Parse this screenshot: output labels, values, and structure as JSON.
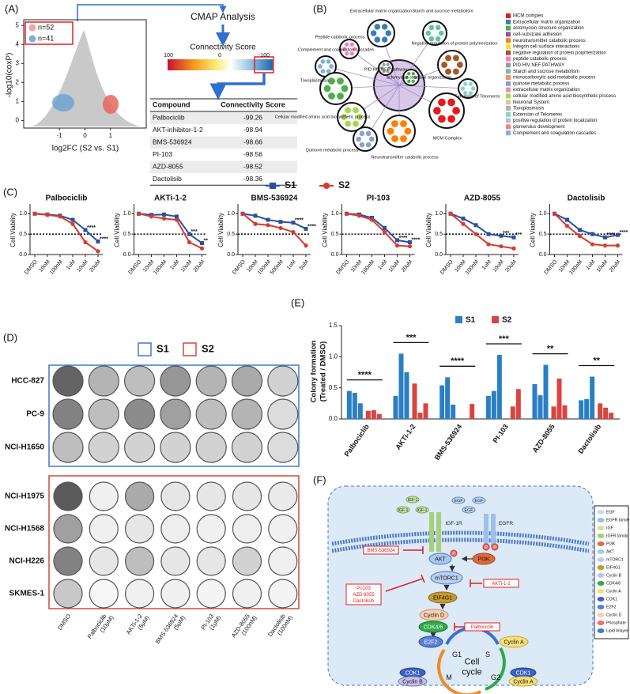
{
  "panel_labels": [
    "(A)",
    "(B)",
    "(C)",
    "(D)",
    "(E)",
    "(F)"
  ],
  "volcano": {
    "type": "scatter",
    "xlabel": "log2FC (S2 vs. S1)",
    "ylabel": "-log10(coxP)",
    "xlim": [
      -2.4,
      2.4
    ],
    "ylim": [
      -0.4,
      5.3
    ],
    "xticks": [
      -1,
      0,
      1
    ],
    "yticks": [
      0,
      1,
      2,
      3,
      4,
      5
    ],
    "legend": [
      {
        "label": "n=52",
        "color": "#f2a3a3"
      },
      {
        "label": "n=41",
        "color": "#7fb0d8"
      }
    ]
  },
  "cmap": {
    "title": "CMAP Analysis",
    "scale_title": "Connectivity Score",
    "scale_labels": [
      100,
      0,
      -100
    ],
    "table": {
      "header": [
        "Compound",
        "Connectivity Score"
      ],
      "rows": [
        [
          "Palbociclib",
          -99.26
        ],
        [
          "AKT-inhibitor-1-2",
          -98.94
        ],
        [
          "BMS-536924",
          -98.66
        ],
        [
          "PI-103",
          -98.56
        ],
        [
          "AZD-8055",
          -98.52
        ],
        [
          "Dactolisib",
          -98.36
        ]
      ]
    }
  },
  "network": {
    "clusters": [
      "Extracellular matrix organization",
      "Starch and sucrose metabolism",
      "Peptide catabolic process",
      "Negative regulation of protein polymerization",
      "Complement and coagulation cascades",
      "PID HIV NEF pathway",
      "actomyosin structure organization",
      "Toxoplasmosis",
      "Extension of Telomeres",
      "Cellular modified amino acid biosynthetic process",
      "MCM Complex",
      "Quinone metabolic process",
      "Neurotransmitter catabolic process"
    ],
    "legend": [
      {
        "label": "MCM complex",
        "color": "#e41a1c"
      },
      {
        "label": "Extracellular matrix organization",
        "color": "#377eb8"
      },
      {
        "label": "actomyosin structure organization",
        "color": "#4daf4a"
      },
      {
        "label": "cell-substrate adhesion",
        "color": "#984ea3"
      },
      {
        "label": "neurotransmitter catabolic process",
        "color": "#ff7f00"
      },
      {
        "label": "Integrin cell surface interactions",
        "color": "#ffd92f"
      },
      {
        "label": "negative regulation of protein polymerization",
        "color": "#a65628"
      },
      {
        "label": "peptide catabolic process",
        "color": "#f781bf"
      },
      {
        "label": "PID HIV NEF PATHWAY",
        "color": "#999999"
      },
      {
        "label": "Starch and sucrose metabolism",
        "color": "#66c2a5"
      },
      {
        "label": "monocarboxylic acid metabolic process",
        "color": "#fc8d62"
      },
      {
        "label": "quinone metabolic process",
        "color": "#8da0cb"
      },
      {
        "label": "extracellular matrix organization",
        "color": "#e78ac3"
      },
      {
        "label": "cellular modified amino acid biosynthetic process",
        "color": "#a6d854"
      },
      {
        "label": "Neuronal System",
        "color": "#e5c494"
      },
      {
        "label": "Toxoplasmosis",
        "color": "#b3b3b3"
      },
      {
        "label": "Extension of Telomeres",
        "color": "#8dd3c7"
      },
      {
        "label": "positive regulation of protein localization",
        "color": "#bebada"
      },
      {
        "label": "glomerulus development",
        "color": "#fb8072"
      },
      {
        "label": "Complement and coagulation cascades",
        "color": "#80b1d3"
      }
    ]
  },
  "viability": {
    "ylabel": "Cell Viability",
    "ylim": [
      0,
      1.2
    ],
    "yticks": [
      {
        "value": 0,
        "label": "0.0"
      },
      {
        "value": 0.5,
        "label": "0.5"
      },
      {
        "value": 1,
        "label": "1.0"
      }
    ],
    "reference": 0.5,
    "charts": [
      {
        "type": "line",
        "title": "Palbociclib",
        "categories": [
          "DMSO",
          "10nM",
          "100nM",
          "1uM",
          "10uM",
          "20uM"
        ],
        "series": [
          {
            "name": "S1",
            "color": "#2b4fa0",
            "values": [
              1.0,
              0.98,
              0.95,
              0.85,
              0.6,
              0.32
            ]
          },
          {
            "name": "S2",
            "color": "#d93a2b",
            "values": [
              1.0,
              0.97,
              0.93,
              0.75,
              0.3,
              0.08
            ]
          }
        ],
        "annotations": [
          "****",
          "****"
        ]
      },
      {
        "type": "line",
        "title": "AKTi-1-2",
        "categories": [
          "DMSO",
          "10nM",
          "100nM",
          "1uM",
          "10uM",
          "20uM"
        ],
        "series": [
          {
            "name": "S1",
            "color": "#2b4fa0",
            "values": [
              1.0,
              0.97,
              0.98,
              0.93,
              0.5,
              0.28
            ]
          },
          {
            "name": "S2",
            "color": "#d93a2b",
            "values": [
              1.0,
              0.93,
              0.88,
              0.85,
              0.3,
              0.15
            ]
          }
        ],
        "annotations": [
          "***",
          "**"
        ]
      },
      {
        "type": "line",
        "title": "BMS-536924",
        "categories": [
          "DMSO",
          "10nM",
          "100nM",
          "500nM",
          "1uM",
          "5uM"
        ],
        "series": [
          {
            "name": "S1",
            "color": "#2b4fa0",
            "values": [
              1.0,
              0.95,
              0.85,
              0.8,
              0.78,
              0.63
            ]
          },
          {
            "name": "S2",
            "color": "#d93a2b",
            "values": [
              1.0,
              0.75,
              0.72,
              0.65,
              0.55,
              0.22
            ]
          }
        ],
        "annotations": [
          "****",
          "****"
        ]
      },
      {
        "type": "line",
        "title": "PI-103",
        "categories": [
          "DMSO",
          "10nM",
          "100nM",
          "1uM",
          "10uM",
          "20uM"
        ],
        "series": [
          {
            "name": "S1",
            "color": "#2b4fa0",
            "values": [
              1.0,
              0.98,
              0.9,
              0.65,
              0.35,
              0.3
            ]
          },
          {
            "name": "S2",
            "color": "#d93a2b",
            "values": [
              1.0,
              0.95,
              0.85,
              0.55,
              0.22,
              0.2
            ]
          }
        ],
        "annotations": [
          "****",
          "****"
        ]
      },
      {
        "type": "line",
        "title": "AZD-8055",
        "categories": [
          "DMSO",
          "10nM",
          "100nM",
          "1uM",
          "10uM",
          "20uM"
        ],
        "series": [
          {
            "name": "S1",
            "color": "#2b4fa0",
            "values": [
              1.0,
              0.88,
              0.72,
              0.5,
              0.46,
              0.42
            ]
          },
          {
            "name": "S2",
            "color": "#d93a2b",
            "values": [
              1.0,
              0.75,
              0.5,
              0.25,
              0.2,
              0.15
            ]
          }
        ],
        "annotations": [
          "***",
          "***"
        ]
      },
      {
        "type": "line",
        "title": "Dactolisib",
        "categories": [
          "DMSO",
          "10nM",
          "100nM",
          "1uM",
          "10uM",
          "20uM"
        ],
        "series": [
          {
            "name": "S1",
            "color": "#2b4fa0",
            "values": [
              1.0,
              0.85,
              0.6,
              0.5,
              0.42,
              0.48
            ]
          },
          {
            "name": "S2",
            "color": "#d93a2b",
            "values": [
              1.0,
              0.7,
              0.45,
              0.25,
              0.22,
              0.22
            ]
          }
        ],
        "annotations": [
          "****",
          "****"
        ]
      }
    ]
  },
  "colony": {
    "legend": [
      "S1",
      "S2"
    ],
    "cell_lines_s1": [
      "HCC-827",
      "PC-9",
      "NCI-H1650"
    ],
    "cell_lines_s2": [
      "NCI-H1975",
      "NCI-H1568",
      "NCI-H226",
      "SKMES-1"
    ],
    "treatments": [
      [
        "DMSO"
      ],
      [
        "Palbociclib",
        "(10μM)"
      ],
      [
        "AKTi-1-2",
        "(5μM)"
      ],
      [
        "BMS-536924",
        "(5μM)"
      ],
      [
        "PI-103",
        "(1μM)"
      ],
      [
        "AZD-8055",
        "(100nM)"
      ],
      [
        "Dactolisib",
        "(100nM)"
      ]
    ]
  },
  "colony_bars": {
    "type": "bar",
    "ylabel": [
      "Colony formation",
      "(Treated / DMSO)"
    ],
    "ylim": [
      0,
      1.5
    ],
    "yticks": [
      {
        "value": 0,
        "label": "0.0"
      },
      {
        "value": 0.5,
        "label": "0.5"
      },
      {
        "value": 1,
        "label": "1.0"
      },
      {
        "value": 1.5,
        "label": "1.5"
      }
    ],
    "categories": [
      "Palbociclib",
      "AKTi-1-2",
      "BMS-536924",
      "PI-103",
      "AZD-8055",
      "Dactolisib"
    ],
    "series": [
      {
        "name": "S1",
        "color": "#2a7fc4",
        "values": [
          [
            0.45,
            0.42,
            0.25
          ],
          [
            0.37,
            1.05,
            0.75
          ],
          [
            0.54,
            0.67,
            0.23
          ],
          [
            0.37,
            0.45,
            1.03
          ],
          [
            0.56,
            0.38,
            0.87
          ],
          [
            0.3,
            0.32,
            0.68
          ]
        ]
      },
      {
        "name": "S2",
        "color": "#d94441",
        "values": [
          [
            0.13,
            0.14,
            0.08
          ],
          [
            0.57,
            0.1,
            0.25
          ],
          [
            0,
            0,
            0.24
          ],
          [
            0,
            0.2,
            0.48
          ],
          [
            0.2,
            0.65,
            0.22
          ],
          [
            0.25,
            0.18,
            0.1
          ]
        ]
      }
    ],
    "significance": [
      "****",
      "***",
      "****",
      "***",
      "**",
      "**"
    ]
  },
  "pathway": {
    "nodes": [
      "IGF-1",
      "IGF-1",
      "IGF-1",
      "IGF-1R",
      "EGF",
      "EGF",
      "EGF",
      "EGFR",
      "BMS-536924",
      "AKT",
      "P",
      "PI3K",
      "mTORC1",
      "AKTi-1-2",
      "PI-103",
      "AZD-8055",
      "Dactolisib",
      "EIF4G1",
      "Cyclin D",
      "CDK4/6",
      "Palbociclib",
      "E2F2",
      "Cyclin A",
      "G1",
      "S",
      "Cell",
      "cycle",
      "M",
      "G2",
      "CDK1",
      "Cyclin B",
      "CDK1",
      "Cyclin A",
      "P",
      "P"
    ],
    "legend": [
      "EGF",
      "EGFR family",
      "IGF",
      "IGFR family",
      "PI3K",
      "AKT",
      "mTORC1",
      "EIF4G1",
      "Cyclin B",
      "CDK4/6",
      "Cyclin A",
      "CDK1",
      "E2F2",
      "Cyclin D",
      "Phosphate",
      "Lipid bilayer"
    ]
  }
}
